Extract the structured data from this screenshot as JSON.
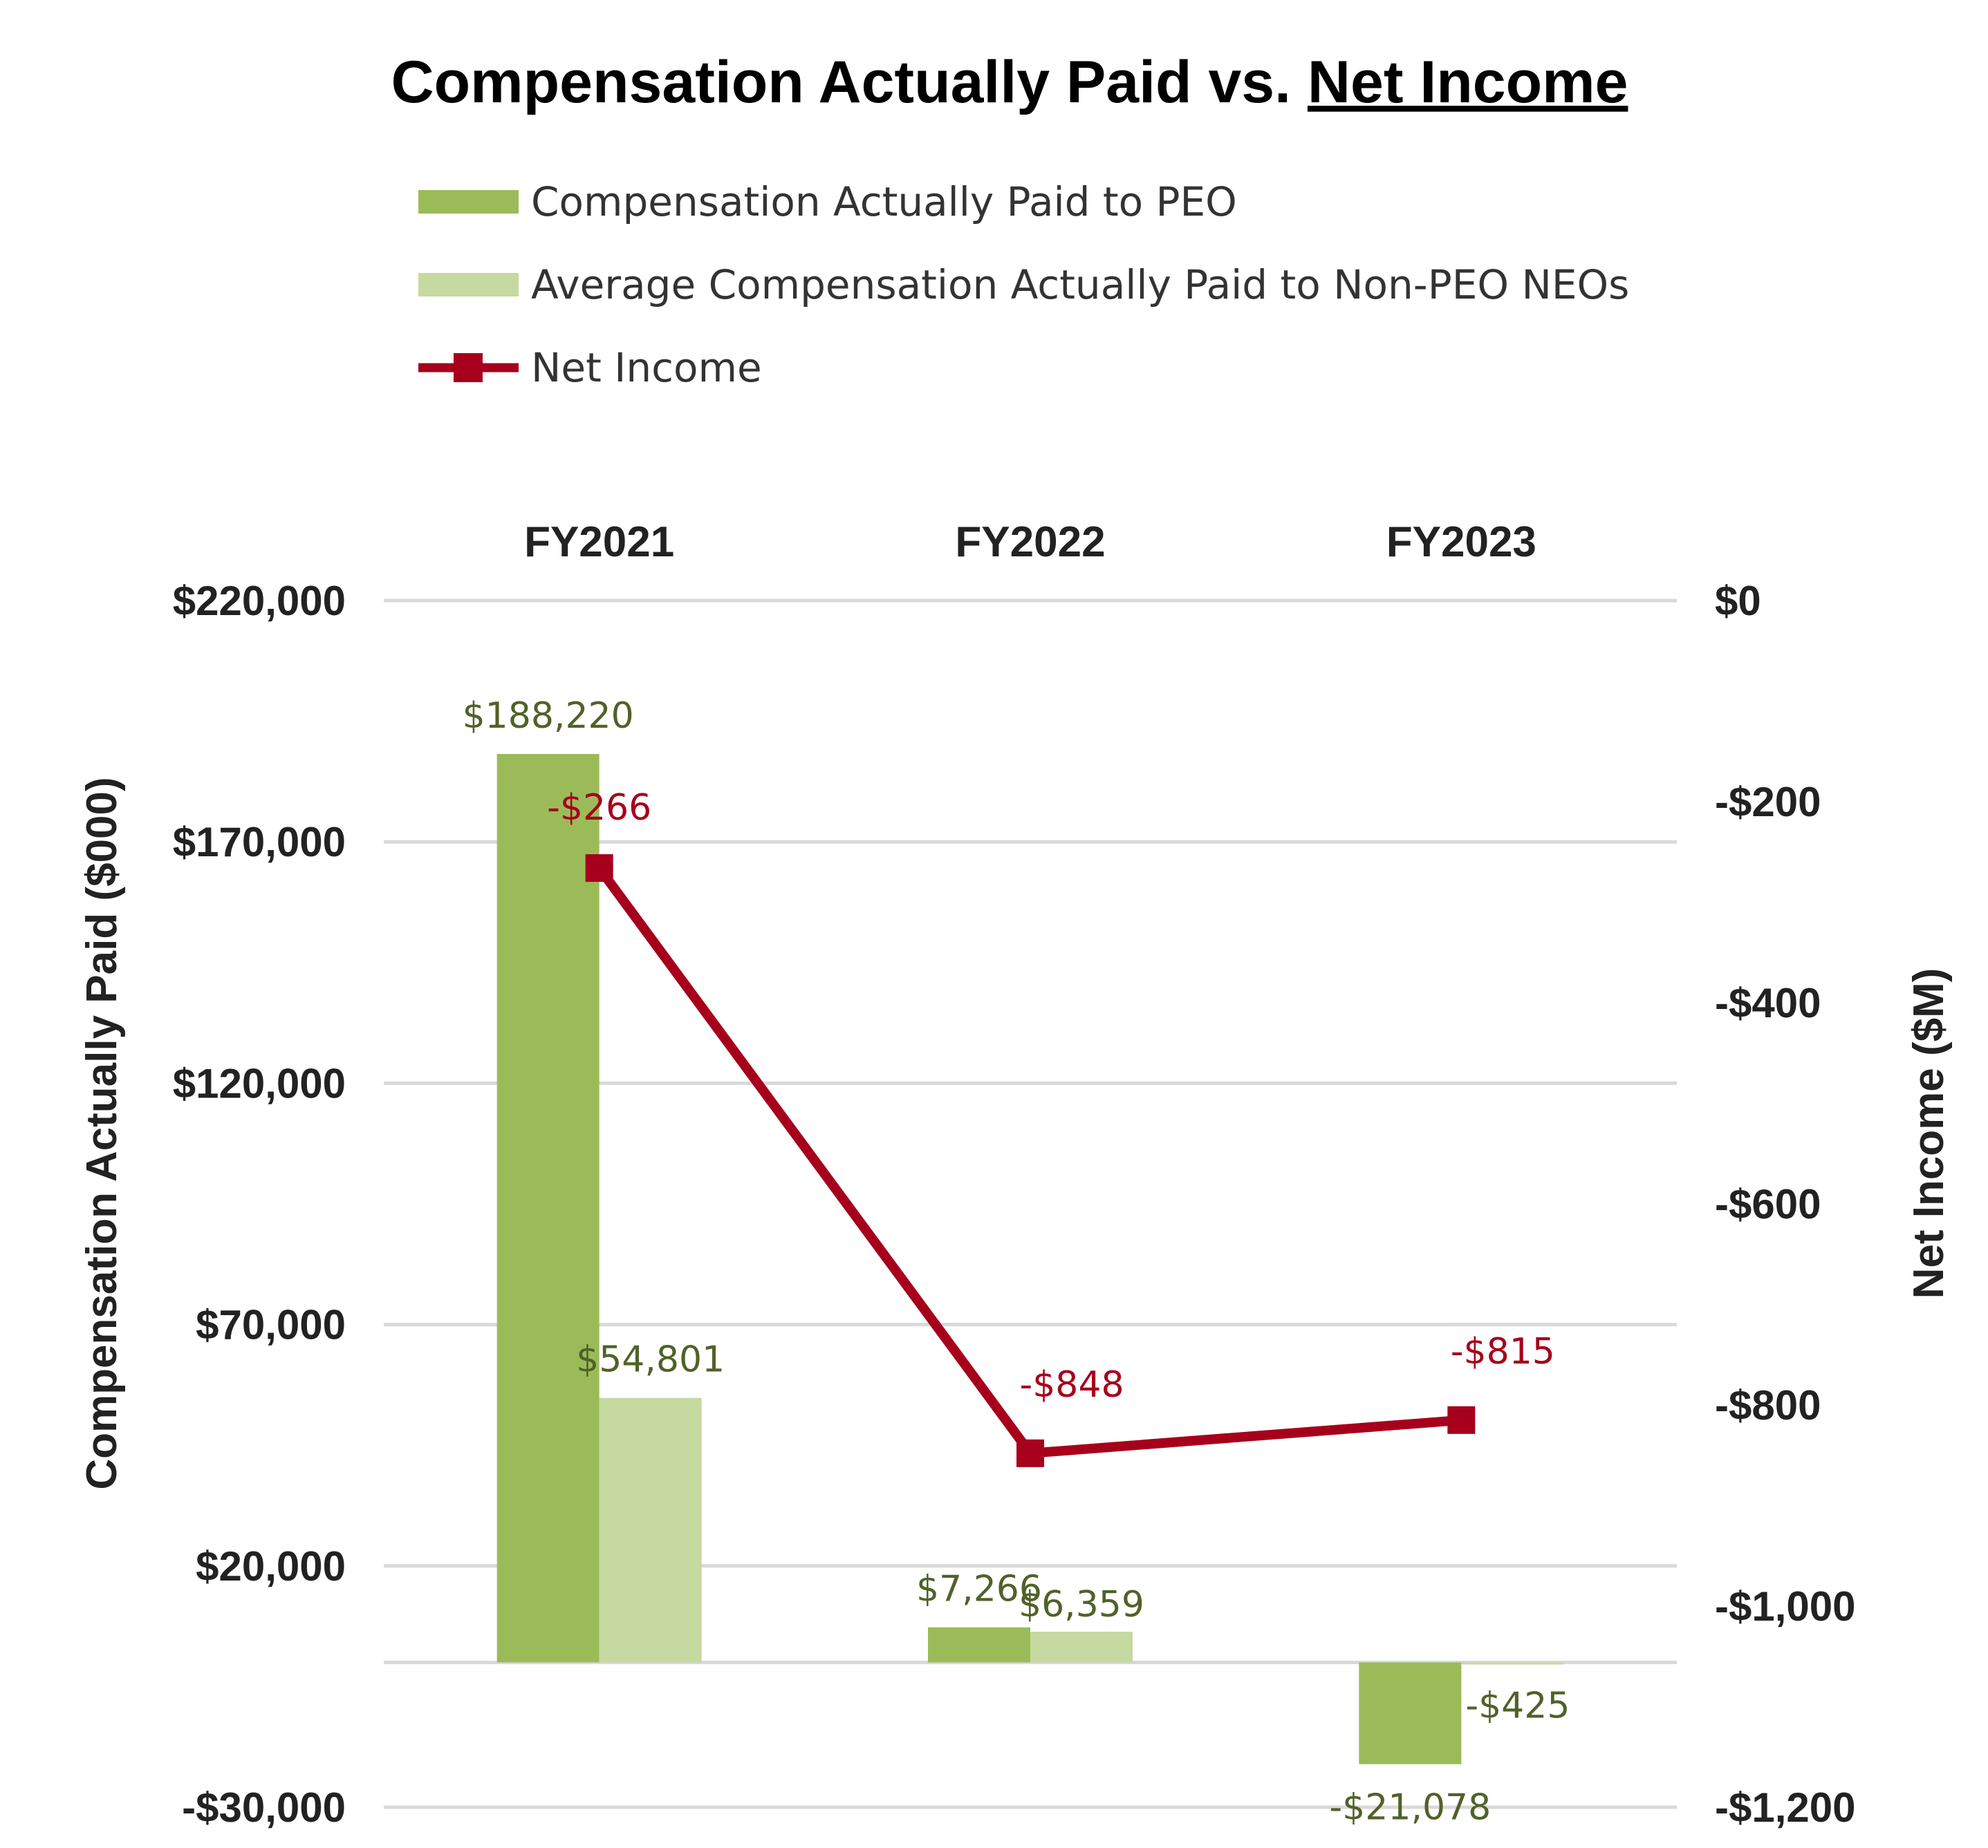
{
  "chart_data": {
    "type": "bar+line",
    "title_part1": "Compensation Actually Paid vs. ",
    "title_part2": "Net Income",
    "categories": [
      "FY2021",
      "FY2022",
      "FY2023"
    ],
    "series": [
      {
        "name": "Compensation Actually Paid to PEO",
        "axis": "left",
        "kind": "bar",
        "color": "#9bbb59",
        "values": [
          188220,
          7266,
          -21078
        ],
        "labels": [
          "$188,220",
          "$7,266",
          "-$21,078"
        ]
      },
      {
        "name": "Average Compensation Actually Paid to Non-PEO NEOs",
        "axis": "left",
        "kind": "bar",
        "color": "#c6d9a0",
        "values": [
          54801,
          6359,
          -425
        ],
        "labels": [
          "$54,801",
          "$6,359",
          "-$425"
        ]
      },
      {
        "name": "Net Income",
        "axis": "right",
        "kind": "line",
        "color": "#a6001c",
        "values": [
          -266,
          -848,
          -815
        ],
        "labels": [
          "-$266",
          "-$848",
          "-$815"
        ]
      }
    ],
    "ylabel_left": "Compensation Actually Paid ($000)",
    "ylabel_right": "Net Income ($M)",
    "ylim_left": [
      -30000,
      220000
    ],
    "ylim_right": [
      -1200,
      0
    ],
    "left_ticks": [
      {
        "value": 220000,
        "label": "$220,000"
      },
      {
        "value": 170000,
        "label": "$170,000"
      },
      {
        "value": 120000,
        "label": "$120,000"
      },
      {
        "value": 70000,
        "label": "$70,000"
      },
      {
        "value": 20000,
        "label": "$20,000"
      },
      {
        "value": -30000,
        "label": "-$30,000"
      }
    ],
    "right_ticks": [
      {
        "value": 0,
        "label": "$0"
      },
      {
        "value": -200,
        "label": "-$200"
      },
      {
        "value": -400,
        "label": "-$400"
      },
      {
        "value": -600,
        "label": "-$600"
      },
      {
        "value": -800,
        "label": "-$800"
      },
      {
        "value": -1000,
        "label": "-$1,000"
      },
      {
        "value": -1200,
        "label": "-$1,200"
      }
    ],
    "grid": true,
    "legend_position": "top-left",
    "category_axis_position": "top"
  }
}
